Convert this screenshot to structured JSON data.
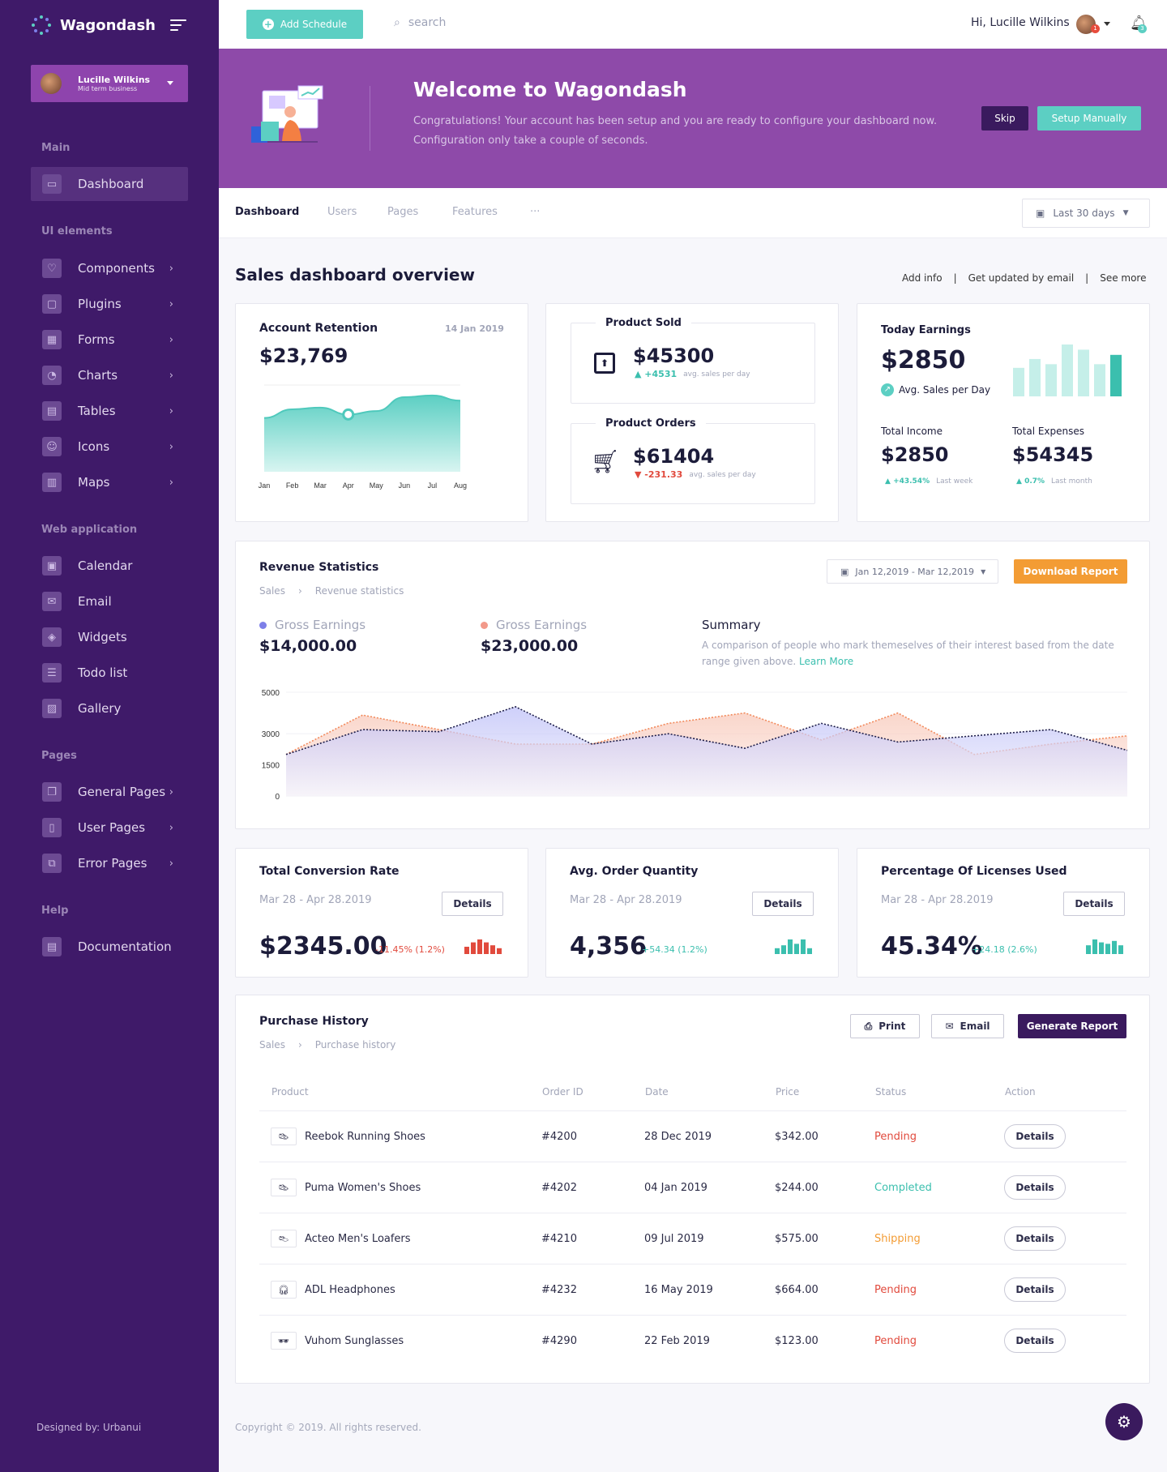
{
  "app": {
    "name": "Wagondash"
  },
  "user": {
    "name": "Lucille Wilkins",
    "role": "Mid term business"
  },
  "sidebar": {
    "sections": [
      {
        "title": "Main"
      },
      {
        "title": "UI elements"
      },
      {
        "title": "Web application"
      },
      {
        "title": "Pages"
      },
      {
        "title": "Help"
      }
    ],
    "items": [
      {
        "label": "Dashboard",
        "icon": "monitor-icon"
      },
      {
        "label": "Components",
        "icon": "heart-icon"
      },
      {
        "label": "Plugins",
        "icon": "folder-icon"
      },
      {
        "label": "Forms",
        "icon": "grid-icon"
      },
      {
        "label": "Charts",
        "icon": "pie-icon"
      },
      {
        "label": "Tables",
        "icon": "table-icon"
      },
      {
        "label": "Icons",
        "icon": "smile-icon"
      },
      {
        "label": "Maps",
        "icon": "map-icon"
      },
      {
        "label": "Calendar",
        "icon": "calendar-icon"
      },
      {
        "label": "Email",
        "icon": "mail-icon"
      },
      {
        "label": "Widgets",
        "icon": "box-icon"
      },
      {
        "label": "Todo list",
        "icon": "list-icon"
      },
      {
        "label": "Gallery",
        "icon": "image-icon"
      },
      {
        "label": "General Pages",
        "icon": "pages-icon"
      },
      {
        "label": "User Pages",
        "icon": "file-icon"
      },
      {
        "label": "Error Pages",
        "icon": "copy-icon"
      },
      {
        "label": "Documentation",
        "icon": "doc-icon"
      }
    ],
    "designed_by": "Designed by: Urbanui"
  },
  "topbar": {
    "add_schedule": "Add Schedule",
    "search_placeholder": "search",
    "greeting": "Hi, Lucille Wilkins",
    "avatar_badge": "1",
    "bell_badge": "3"
  },
  "banner": {
    "title": "Welcome to Wagondash",
    "text": "Congratulations! Your account has been setup and you are ready to configure your dashboard now. Configuration only take a couple of seconds.",
    "skip": "Skip",
    "setup": "Setup Manually"
  },
  "tabs": {
    "items": [
      "Dashboard",
      "Users",
      "Pages",
      "Features",
      "···"
    ],
    "range": "Last 30 days"
  },
  "overview": {
    "title": "Sales dashboard overview",
    "links": [
      "Add info",
      "|",
      "Get updated by email",
      "|",
      "See more"
    ]
  },
  "retention": {
    "title": "Account Retention",
    "date": "14 Jan 2019",
    "value": "$23,769",
    "chart_data": {
      "type": "area",
      "categories": [
        "Jan",
        "Feb",
        "Mar",
        "Apr",
        "May",
        "Jun",
        "Jul",
        "Aug"
      ],
      "values": [
        62,
        72,
        74,
        66,
        70,
        86,
        88,
        82
      ],
      "ylim": [
        0,
        100
      ]
    }
  },
  "product_sold": {
    "title": "Product Sold",
    "value": "$45300",
    "change": "+4531",
    "note": "avg. sales per day"
  },
  "product_orders": {
    "title": "Product Orders",
    "value": "$61404",
    "change": "-231.33",
    "note": "avg. sales per day"
  },
  "today": {
    "title": "Today Earnings",
    "value": "$2850",
    "sub": "Avg. Sales per Day",
    "bars": [
      0.55,
      0.72,
      0.62,
      1.0,
      0.9,
      0.62,
      0.8
    ],
    "income": {
      "label": "Total Income",
      "value": "$2850",
      "change": "+43.54%",
      "note": "Last week"
    },
    "expenses": {
      "label": "Total Expenses",
      "value": "$54345",
      "change": "0.7%",
      "note": "Last month"
    }
  },
  "revenue": {
    "title": "Revenue Statistics",
    "breadcrumb": [
      "Sales",
      "Revenue statistics"
    ],
    "range": "Jan 12,2019 - Mar 12,2019",
    "download": "Download Report",
    "gross1": {
      "label": "Gross Earnings",
      "value": "$14,000.00",
      "color": "#7d7fe8"
    },
    "gross2": {
      "label": "Gross Earnings",
      "value": "$23,000.00",
      "color": "#f2998a"
    },
    "summary_title": "Summary",
    "summary_text": "A comparison of people who mark themeselves of their interest based from the date range given above.",
    "learn_more": "Learn More",
    "chart_data": {
      "type": "line",
      "y_ticks": [
        5000,
        3000,
        1500,
        0
      ],
      "ylim": [
        0,
        5000
      ],
      "series": [
        {
          "color": "#1e1e4a",
          "values": [
            2000,
            3200,
            3100,
            4300,
            2500,
            3000,
            2300,
            3500,
            2600,
            2900,
            3200,
            2200
          ]
        },
        {
          "color": "#f28a5c",
          "values": [
            2000,
            3900,
            3200,
            2500,
            2500,
            3500,
            4000,
            2700,
            4000,
            2000,
            2500,
            2900
          ]
        }
      ]
    }
  },
  "metrics": [
    {
      "title": "Total Conversion Rate",
      "date": "Mar 28 - Apr 28.2019",
      "button": "Details",
      "value": "$2345.00",
      "change": "-11.45% (1.2%)",
      "trend": "down",
      "bars": [
        0.5,
        0.8,
        1.0,
        0.8,
        0.6,
        0.4
      ]
    },
    {
      "title": "Avg. Order Quantity",
      "date": "Mar 28 - Apr 28.2019",
      "button": "Details",
      "value": "4,356",
      "change": "+54.34 (1.2%)",
      "trend": "up",
      "bars": [
        0.4,
        0.6,
        1.0,
        0.7,
        1.0,
        0.4
      ]
    },
    {
      "title": "Percentage Of Licenses Used",
      "date": "Mar 28 - Apr 28.2019",
      "button": "Details",
      "value": "45.34%",
      "change": "+24.18 (2.6%)",
      "trend": "up",
      "bars": [
        0.6,
        1.0,
        0.8,
        0.7,
        0.9,
        0.6
      ]
    }
  ],
  "purchase": {
    "title": "Purchase History",
    "breadcrumb": [
      "Sales",
      "Purchase history"
    ],
    "print": "Print",
    "email": "Email",
    "generate": "Generate Report",
    "columns": [
      "Product",
      "Order ID",
      "Date",
      "Price",
      "Status",
      "Action"
    ],
    "rows": [
      {
        "product": "Reebok Running Shoes",
        "order": "#4200",
        "date": "28 Dec 2019",
        "price": "$342.00",
        "status": "Pending",
        "status_color": "#e14a3d",
        "action": "Details",
        "thumb": "shoe-icon"
      },
      {
        "product": "Puma Women's Shoes",
        "order": "#4202",
        "date": "04 Jan 2019",
        "price": "$244.00",
        "status": "Completed",
        "status_color": "#3bbfae",
        "action": "Details",
        "thumb": "pink-shoe-icon"
      },
      {
        "product": "Acteo Men's Loafers",
        "order": "#4210",
        "date": "09 Jul 2019",
        "price": "$575.00",
        "status": "Shipping",
        "status_color": "#f39c34",
        "action": "Details",
        "thumb": "loafer-icon"
      },
      {
        "product": "ADL Headphones",
        "order": "#4232",
        "date": "16 May 2019",
        "price": "$664.00",
        "status": "Pending",
        "status_color": "#e14a3d",
        "action": "Details",
        "thumb": "headphones-icon"
      },
      {
        "product": "Vuhom Sunglasses",
        "order": "#4290",
        "date": "22 Feb 2019",
        "price": "$123.00",
        "status": "Pending",
        "status_color": "#e14a3d",
        "action": "Details",
        "thumb": "sunglasses-icon"
      }
    ]
  },
  "footer": {
    "copyright": "Copyright © 2019. All rights reserved."
  }
}
